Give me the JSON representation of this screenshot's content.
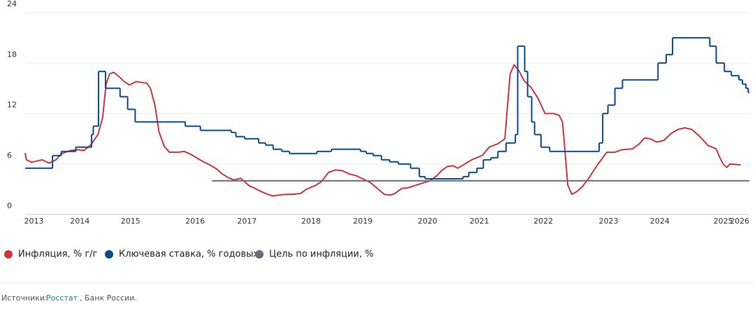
{
  "chart_data": {
    "type": "line",
    "xlim": [
      2013.7,
      2026.14
    ],
    "ylim": [
      0,
      24
    ],
    "yticks": [
      0,
      6,
      12,
      18,
      24
    ],
    "grid": true,
    "legend": "bottom-left",
    "xticks": [
      {
        "value": 2013.85,
        "label": "2013"
      },
      {
        "value": 2014.64,
        "label": "2014"
      },
      {
        "value": 2015.51,
        "label": "2015"
      },
      {
        "value": 2016.62,
        "label": "2016"
      },
      {
        "value": 2017.51,
        "label": "2017"
      },
      {
        "value": 2018.61,
        "label": "2018"
      },
      {
        "value": 2019.5,
        "label": "2019"
      },
      {
        "value": 2020.61,
        "label": "2020"
      },
      {
        "value": 2021.5,
        "label": "2021"
      },
      {
        "value": 2022.6,
        "label": "2022"
      },
      {
        "value": 2023.72,
        "label": "2023"
      },
      {
        "value": 2024.6,
        "label": "2024"
      },
      {
        "value": 2025.69,
        "label": "2025"
      },
      {
        "value": 2026.26,
        "label": "2026"
      }
    ],
    "series": [
      {
        "name": "Инфляция, % г/г",
        "color": "#d0343f",
        "step": false,
        "x": [
          2013.7,
          2013.72,
          2013.81,
          2013.99,
          2014.11,
          2014.23,
          2014.32,
          2014.47,
          2014.61,
          2014.71,
          2014.83,
          2014.95,
          2015.03,
          2015.09,
          2015.15,
          2015.22,
          2015.31,
          2015.4,
          2015.49,
          2015.61,
          2015.79,
          2015.85,
          2015.93,
          2016.0,
          2016.09,
          2016.18,
          2016.33,
          2016.43,
          2016.53,
          2016.63,
          2016.75,
          2016.87,
          2016.99,
          2017.09,
          2017.21,
          2017.29,
          2017.4,
          2017.47,
          2017.55,
          2017.65,
          2017.73,
          2017.83,
          2017.95,
          2018.05,
          2018.19,
          2018.31,
          2018.43,
          2018.53,
          2018.67,
          2018.79,
          2018.91,
          2019.03,
          2019.15,
          2019.27,
          2019.39,
          2019.51,
          2019.63,
          2019.75,
          2019.87,
          2019.97,
          2020.05,
          2020.17,
          2020.29,
          2020.47,
          2020.65,
          2020.77,
          2020.85,
          2020.95,
          2021.05,
          2021.13,
          2021.25,
          2021.37,
          2021.55,
          2021.67,
          2021.82,
          2021.94,
          2022.03,
          2022.1,
          2022.18,
          2022.27,
          2022.39,
          2022.51,
          2022.63,
          2022.78,
          2022.87,
          2022.93,
          2023.02,
          2023.09,
          2023.17,
          2023.27,
          2023.38,
          2023.53,
          2023.69,
          2023.83,
          2023.95,
          2024.13,
          2024.25,
          2024.34,
          2024.43,
          2024.55,
          2024.67,
          2024.79,
          2024.91,
          2025.03,
          2025.15,
          2025.27,
          2025.43,
          2025.57,
          2025.63,
          2025.69,
          2025.75,
          2025.81,
          2025.99
        ],
        "values": [
          7.3,
          6.5,
          6.2,
          6.5,
          6.1,
          6.5,
          7.2,
          7.6,
          7.7,
          7.6,
          8.3,
          9.5,
          11.5,
          15.5,
          16.7,
          16.9,
          16.4,
          15.8,
          15.4,
          15.8,
          15.6,
          15.0,
          13.0,
          9.8,
          8.1,
          7.4,
          7.4,
          7.5,
          7.2,
          6.8,
          6.3,
          5.9,
          5.4,
          4.8,
          4.3,
          4.1,
          4.3,
          3.9,
          3.4,
          3.1,
          2.8,
          2.5,
          2.2,
          2.3,
          2.4,
          2.4,
          2.5,
          3.0,
          3.4,
          3.9,
          5.0,
          5.3,
          5.2,
          4.8,
          4.6,
          4.2,
          3.8,
          3.1,
          2.4,
          2.3,
          2.5,
          3.1,
          3.2,
          3.6,
          4.0,
          4.6,
          5.2,
          5.7,
          5.8,
          5.5,
          6.0,
          6.5,
          7.0,
          8.0,
          8.4,
          9.0,
          16.7,
          17.8,
          17.1,
          15.9,
          15.1,
          13.8,
          12.0,
          12.0,
          11.8,
          11.0,
          3.5,
          2.4,
          2.7,
          3.3,
          4.3,
          5.9,
          7.4,
          7.4,
          7.7,
          7.8,
          8.4,
          9.1,
          9.0,
          8.6,
          8.8,
          9.6,
          10.1,
          10.3,
          10.1,
          9.4,
          8.2,
          7.8,
          6.8,
          6.0,
          5.6,
          6.0,
          5.9
        ]
      },
      {
        "name": "Ключевая ставка, % годовых",
        "color": "#0b4a8b",
        "step": true,
        "x": [
          2013.7,
          2014.17,
          2014.32,
          2014.57,
          2014.84,
          2014.87,
          2014.96,
          2015.08,
          2015.33,
          2015.46,
          2015.59,
          2016.45,
          2016.71,
          2017.24,
          2017.32,
          2017.47,
          2017.71,
          2017.83,
          2017.96,
          2018.11,
          2018.24,
          2018.71,
          2018.96,
          2019.46,
          2019.56,
          2019.68,
          2019.82,
          2019.96,
          2020.11,
          2020.32,
          2020.47,
          2020.57,
          2021.22,
          2021.32,
          2021.46,
          2021.57,
          2021.7,
          2021.82,
          2021.96,
          2022.12,
          2022.16,
          2022.28,
          2022.33,
          2022.4,
          2022.45,
          2022.56,
          2022.71,
          2023.56,
          2023.62,
          2023.71,
          2023.83,
          2023.96,
          2024.57,
          2024.71,
          2024.82,
          2025.46,
          2025.57,
          2025.71,
          2025.83,
          2025.96,
          2026.02,
          2026.08,
          2026.12
        ],
        "values": [
          5.5,
          7.0,
          7.5,
          8.0,
          9.5,
          10.5,
          17,
          15,
          14,
          12.5,
          11.0,
          10.5,
          10.0,
          9.75,
          9.25,
          9.0,
          8.5,
          8.25,
          7.75,
          7.5,
          7.25,
          7.5,
          7.75,
          7.5,
          7.25,
          7.0,
          6.5,
          6.25,
          6.0,
          5.5,
          4.5,
          4.25,
          4.5,
          5.0,
          5.5,
          6.5,
          6.75,
          7.5,
          8.5,
          9.5,
          20,
          17,
          14,
          11,
          9.5,
          8.0,
          7.5,
          8.5,
          12,
          13,
          15,
          16,
          18,
          19,
          21,
          20,
          18,
          17,
          16.5,
          16,
          15.5,
          15,
          14.5
        ]
      },
      {
        "name": "Цель по инфляции, %",
        "color": "#6b6b7b",
        "step": false,
        "x": [
          2016.91,
          2026.14
        ],
        "values": [
          4,
          4
        ]
      }
    ]
  },
  "source": {
    "label": "Источники:",
    "link": "Росстат",
    "rest": ", Банк России."
  }
}
